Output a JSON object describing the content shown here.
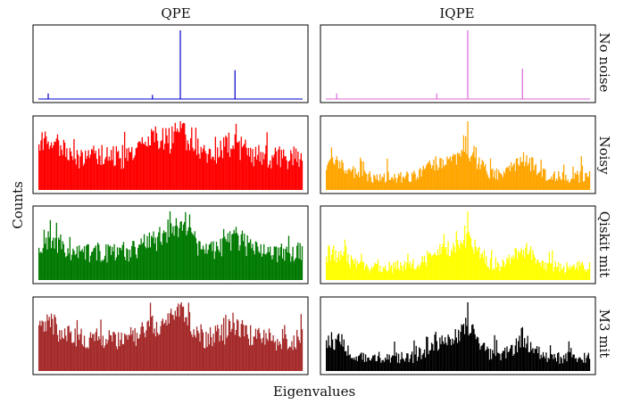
{
  "figure": {
    "col_titles": [
      "QPE",
      "IQPE"
    ],
    "row_labels": [
      "No noise",
      "Noisy",
      "Qiskit mit",
      "M3 mit"
    ],
    "xlabel": "Eigenvalues",
    "ylabel": "Counts"
  },
  "chart_data": {
    "type": "bar",
    "layout": "grid of 4 rows x 2 columns (histograms, axes without tick labels)",
    "columns": [
      "QPE",
      "IQPE"
    ],
    "rows": [
      "No noise",
      "Noisy",
      "Qiskit mit",
      "M3 mit"
    ],
    "xlabel": "Eigenvalues",
    "ylabel": "Counts",
    "bins": 256,
    "grid": false,
    "colors": {
      "QPE|No noise": "#0000cc",
      "QPE|Noisy": "#ff0000",
      "QPE|Qiskit mit": "#007a00",
      "QPE|M3 mit": "#a52a2a",
      "IQPE|No noise": "#dd66dd",
      "IQPE|Noisy": "#ffa500",
      "IQPE|Qiskit mit": "#ffff00",
      "IQPE|M3 mit": "#000000"
    },
    "no_noise_peaks": {
      "QPE": [
        {
          "bin": 9,
          "value": 0.08
        },
        {
          "bin": 110,
          "value": 0.06
        },
        {
          "bin": 137,
          "value": 1.0
        },
        {
          "bin": 190,
          "value": 0.42
        }
      ],
      "IQPE": [
        {
          "bin": 10,
          "value": 0.08
        },
        {
          "bin": 107,
          "value": 0.08
        },
        {
          "bin": 137,
          "value": 1.0
        },
        {
          "bin": 190,
          "value": 0.44
        }
      ]
    },
    "noisy_profile": {
      "description": "Broad noisy distributions with local maxima around the same eigenvalue bins",
      "peak_bins": [
        9,
        110,
        137,
        190
      ],
      "QPE": {
        "baseline": 0.3,
        "max": 1.0
      },
      "IQPE": {
        "baseline": 0.1,
        "max": 1.0
      }
    }
  }
}
